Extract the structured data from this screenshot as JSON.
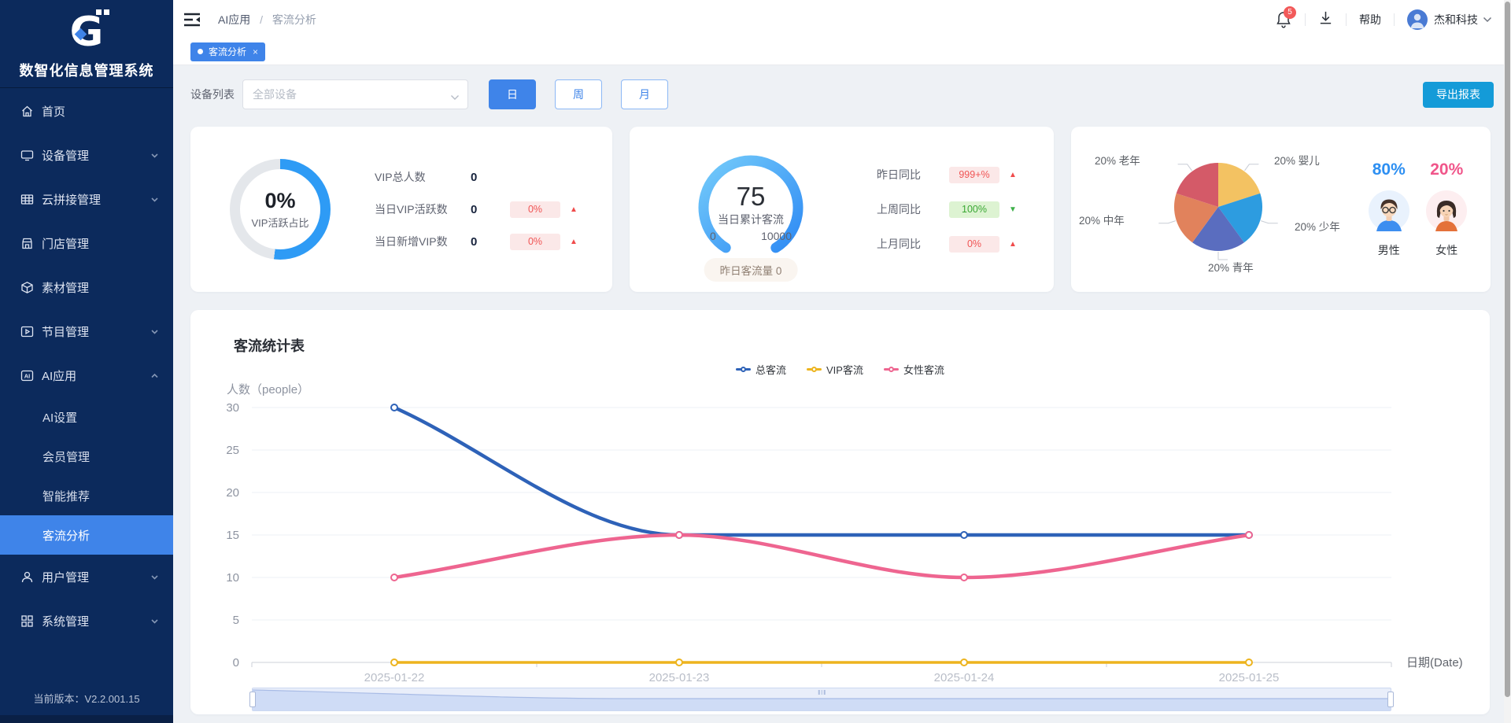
{
  "sidebar": {
    "title": "数智化信息管理系统",
    "version": "当前版本：V2.2.001.15",
    "items": [
      {
        "label": "首页"
      },
      {
        "label": "设备管理"
      },
      {
        "label": "云拼接管理"
      },
      {
        "label": "门店管理"
      },
      {
        "label": "素材管理"
      },
      {
        "label": "节目管理"
      },
      {
        "label": "AI应用"
      },
      {
        "label": "用户管理"
      },
      {
        "label": "系统管理"
      }
    ],
    "submenu": {
      "items": [
        {
          "label": "AI设置"
        },
        {
          "label": "会员管理"
        },
        {
          "label": "智能推荐"
        },
        {
          "label": "客流分析"
        }
      ],
      "active": "客流分析"
    }
  },
  "header": {
    "breadcrumb": {
      "first": "AI应用",
      "sep": "/",
      "second": "客流分析"
    },
    "notification_count": "5",
    "help_label": "帮助",
    "company": "杰和科技"
  },
  "tabbar": {
    "active_tab": "客流分析"
  },
  "filters": {
    "device_label": "设备列表",
    "device_placeholder": "全部设备",
    "range_buttons": [
      "日",
      "周",
      "月"
    ],
    "active_range": "日",
    "export_label": "导出报表"
  },
  "vip_card": {
    "ring_percent": "0%",
    "ring_label": "VIP活跃占比",
    "rows": [
      {
        "label": "VIP总人数",
        "value": "0",
        "badge": "",
        "trend": ""
      },
      {
        "label": "当日VIP活跃数",
        "value": "0",
        "badge": "0%",
        "trend": "up"
      },
      {
        "label": "当日新增VIP数",
        "value": "0",
        "badge": "0%",
        "trend": "up"
      }
    ]
  },
  "traffic_card": {
    "gauge_value": "75",
    "gauge_label": "当日累计客流",
    "gauge_min": "0",
    "gauge_max": "10000",
    "yesterday_text": "昨日客流量 0",
    "rows": [
      {
        "label": "昨日同比",
        "badge": "999+%",
        "trend": "up",
        "tone": "red"
      },
      {
        "label": "上周同比",
        "badge": "100%",
        "trend": "down",
        "tone": "green"
      },
      {
        "label": "上月同比",
        "badge": "0%",
        "trend": "up",
        "tone": "red"
      }
    ]
  },
  "demographics_card": {
    "pie_labels": [
      "20% 老年",
      "20% 婴儿",
      "20% 中年",
      "20% 少年",
      "20% 青年"
    ],
    "male_percent": "80%",
    "male_label": "男性",
    "female_percent": "20%",
    "female_label": "女性"
  },
  "chart_card": {
    "title": "客流统计表",
    "legend": [
      "总客流",
      "VIP客流",
      "女性客流"
    ]
  },
  "colors": {
    "accent_blue": "#3f84e9",
    "export_cyan": "#149bd8",
    "male_blue": "#2d8ff2",
    "female_pink": "#f0558a",
    "badge_red": "#f05555",
    "badge_green": "#3aa834"
  },
  "chart_data": [
    {
      "type": "pie",
      "labels": [
        "婴儿",
        "少年",
        "青年",
        "中年",
        "老年"
      ],
      "values": [
        20,
        20,
        20,
        20,
        20
      ],
      "unit": "%",
      "colors": [
        "#f3c262",
        "#2d9ce0",
        "#5a6dbf",
        "#e1825c",
        "#d45a68"
      ]
    },
    {
      "type": "line",
      "x": [
        "2025-01-22",
        "2025-01-23",
        "2025-01-24",
        "2025-01-25"
      ],
      "series": [
        {
          "name": "总客流",
          "color": "#2e62b8",
          "values": [
            30,
            15,
            15,
            15
          ]
        },
        {
          "name": "VIP客流",
          "color": "#edb41e",
          "values": [
            0,
            0,
            0,
            0
          ]
        },
        {
          "name": "女性客流",
          "color": "#ee6590",
          "values": [
            10,
            15,
            10,
            15
          ]
        }
      ],
      "ylim": [
        0,
        30
      ],
      "ytick_step": 5,
      "xlabel": "日期(Date)",
      "ylabel": "人数（people）",
      "grid": true,
      "legend_position": "top-center",
      "datazoom_slider": true
    }
  ]
}
